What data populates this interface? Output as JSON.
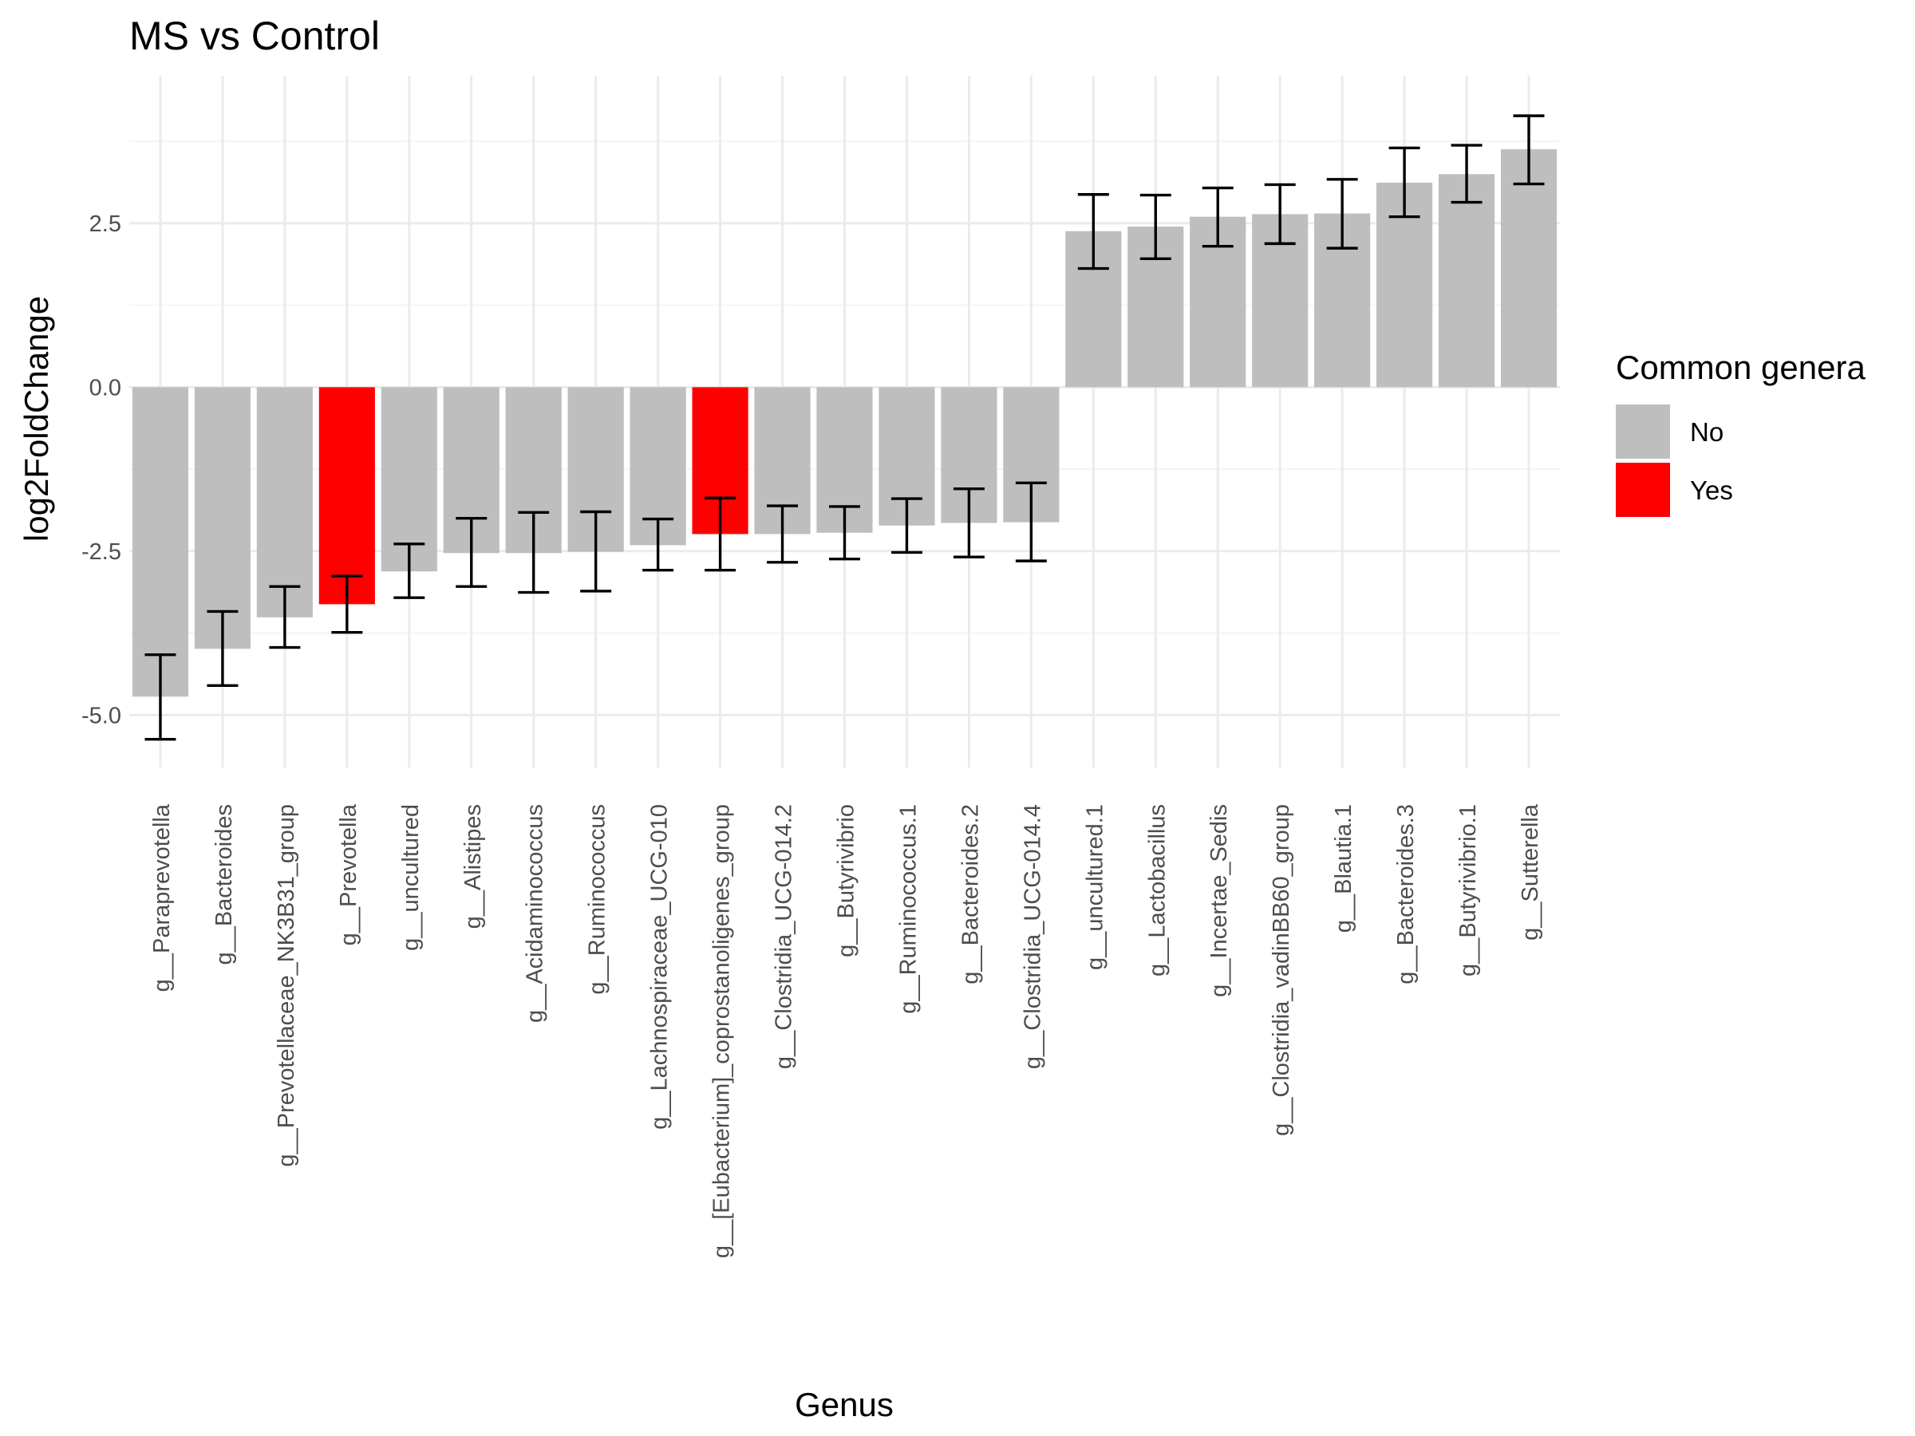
{
  "chart_data": {
    "type": "bar",
    "title": "MS vs Control",
    "xlabel": "Genus",
    "ylabel": "log2FoldChange",
    "ylim": [
      -5.8,
      4.75
    ],
    "yticks": [
      -5.0,
      -2.5,
      0.0,
      2.5
    ],
    "ytick_labels": [
      "-5.0",
      "-2.5",
      "0.0",
      "2.5"
    ],
    "grid": true,
    "legend": {
      "title": "Common genera",
      "position": "right",
      "entries": [
        {
          "label": "No",
          "color": "#bebebe"
        },
        {
          "label": "Yes",
          "color": "#ff0000"
        }
      ]
    },
    "categories": [
      "g__Paraprevotella",
      "g__Bacteroides",
      "g__Prevotellaceae_NK3B31_group",
      "g__Prevotella",
      "g__uncultured",
      "g__Alistipes",
      "g__Acidaminococcus",
      "g__Ruminococcus",
      "g__Lachnospiraceae_UCG-010",
      "g__[Eubacterium]_coprostanoligenes_group",
      "g__Clostridia_UCG-014.2",
      "g__Butyrivibrio",
      "g__Ruminococcus.1",
      "g__Bacteroides.2",
      "g__Clostridia_UCG-014.4",
      "g__uncultured.1",
      "g__Lactobacillus",
      "g__Incertae_Sedis",
      "g__Clostridia_vadinBB60_group",
      "g__Blautia.1",
      "g__Bacteroides.3",
      "g__Butyrivibrio.1",
      "g__Sutterella"
    ],
    "values": [
      -4.72,
      -3.99,
      -3.51,
      -3.31,
      -2.81,
      -2.53,
      -2.53,
      -2.51,
      -2.41,
      -2.24,
      -2.24,
      -2.22,
      -2.11,
      -2.07,
      -2.06,
      2.38,
      2.45,
      2.6,
      2.64,
      2.65,
      3.12,
      3.25,
      3.63
    ],
    "error_low": [
      -5.37,
      -4.55,
      -3.97,
      -3.74,
      -3.21,
      -3.04,
      -3.13,
      -3.11,
      -2.79,
      -2.79,
      -2.67,
      -2.62,
      -2.52,
      -2.59,
      -2.65,
      1.81,
      1.96,
      2.15,
      2.19,
      2.12,
      2.6,
      2.82,
      3.1
    ],
    "error_high": [
      -4.08,
      -3.42,
      -3.04,
      -2.88,
      -2.39,
      -2.0,
      -1.91,
      -1.9,
      -2.01,
      -1.69,
      -1.81,
      -1.82,
      -1.7,
      -1.55,
      -1.46,
      2.94,
      2.93,
      3.04,
      3.09,
      3.17,
      3.65,
      3.69,
      4.14
    ],
    "common": [
      "No",
      "No",
      "No",
      "Yes",
      "No",
      "No",
      "No",
      "No",
      "No",
      "Yes",
      "No",
      "No",
      "No",
      "No",
      "No",
      "No",
      "No",
      "No",
      "No",
      "No",
      "No",
      "No",
      "No"
    ]
  }
}
